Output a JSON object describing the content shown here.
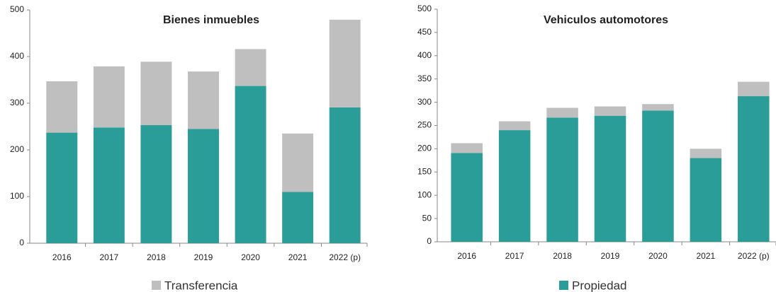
{
  "chart_data": [
    {
      "type": "bar",
      "stacked": true,
      "title": "Bienes inmuebles",
      "categories": [
        "2016",
        "2017",
        "2018",
        "2019",
        "2020",
        "2021",
        "2022 (p)"
      ],
      "series": [
        {
          "color": "#2a9d99",
          "values": [
            237,
            248,
            253,
            245,
            337,
            110,
            291
          ]
        },
        {
          "name": "Transferencia",
          "color": "#bfbfbf",
          "values": [
            110,
            131,
            136,
            123,
            79,
            125,
            188
          ]
        }
      ],
      "ylim": [
        0,
        500
      ],
      "yticks": [
        0,
        100,
        200,
        300,
        400,
        500
      ],
      "grid": false
    },
    {
      "type": "bar",
      "stacked": true,
      "title": "Vehiculos automotores",
      "categories": [
        "2016",
        "2017",
        "2018",
        "2019",
        "2020",
        "2021",
        "2022 (p)"
      ],
      "series": [
        {
          "name": "Propiedad",
          "color": "#2a9d99",
          "values": [
            191,
            240,
            267,
            271,
            282,
            180,
            313
          ]
        },
        {
          "color": "#bfbfbf",
          "values": [
            21,
            19,
            21,
            20,
            14,
            20,
            31
          ]
        }
      ],
      "ylim": [
        0,
        500
      ],
      "yticks": [
        0,
        50,
        100,
        150,
        200,
        250,
        300,
        350,
        400,
        450,
        500
      ],
      "grid": false
    }
  ]
}
